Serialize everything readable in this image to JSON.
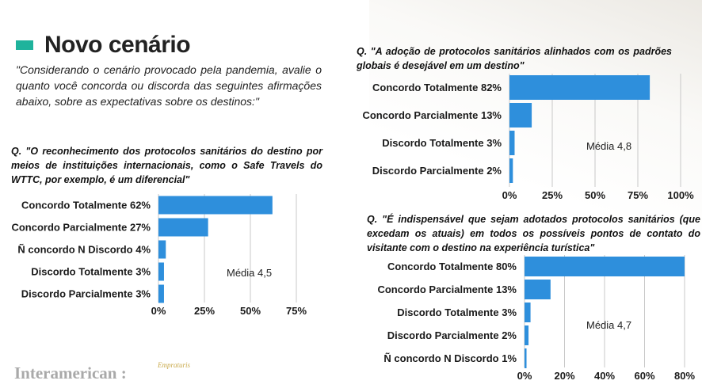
{
  "header": {
    "title": "Novo cenário",
    "intro": "\"Considerando o cenário provocado pela pandemia, avalie o quanto você concorda ou discorda das seguintes afirmações abaixo, sobre as expectativas sobre os destinos:\""
  },
  "questions": {
    "q1": "Q. \"O reconhecimento dos protocolos sanitários do destino por meios de instituições internacionais, como o Safe Travels do WTTC, por exemplo, é um diferencial\"",
    "q2": "Q. \"A adoção de protocolos sanitários alinhados com os padrões globais é desejável em um destino\"",
    "q3": "Q. \"É indispensável que sejam adotados protocolos sanitários (que excedam os atuais) em todos os possíveis pontos de contato do visitante com o destino na experiência turística\""
  },
  "footer": {
    "logo": "Interamerican :",
    "partner_logo": "Empraturis"
  },
  "colors": {
    "bar": "#2e8fdc",
    "accent": "#1fb39c",
    "grid": "#c8c8c8"
  },
  "chart_data": [
    {
      "type": "bar",
      "orientation": "horizontal",
      "categories": [
        "Concordo Totalmente 62%",
        "Concordo Parcialmente 27%",
        "Ñ concordo N Discordo 4%",
        "Discordo Totalmente 3%",
        "Discordo Parcialmente 3%"
      ],
      "values": [
        62,
        27,
        4,
        3,
        3
      ],
      "xlim": [
        0,
        75
      ],
      "xticks": [
        "0%",
        "25%",
        "50%",
        "75%"
      ],
      "annotation": "Média 4,5"
    },
    {
      "type": "bar",
      "orientation": "horizontal",
      "categories": [
        "Concordo Totalmente 82%",
        "Concordo Parcialmente 13%",
        "Discordo Totalmente 3%",
        "Discordo Parcialmente 2%"
      ],
      "values": [
        82,
        13,
        3,
        2
      ],
      "xlim": [
        0,
        100
      ],
      "xticks": [
        "0%",
        "25%",
        "50%",
        "75%",
        "100%"
      ],
      "annotation": "Média 4,8"
    },
    {
      "type": "bar",
      "orientation": "horizontal",
      "categories": [
        "Concordo Totalmente 80%",
        "Concordo Parcialmente 13%",
        "Discordo Totalmente 3%",
        "Discordo Parcialmente 2%",
        "Ñ concordo N Discordo 1%"
      ],
      "values": [
        80,
        13,
        3,
        2,
        1
      ],
      "xlim": [
        0,
        80
      ],
      "xticks": [
        "0%",
        "20%",
        "40%",
        "60%",
        "80%"
      ],
      "annotation": "Média 4,7"
    }
  ]
}
